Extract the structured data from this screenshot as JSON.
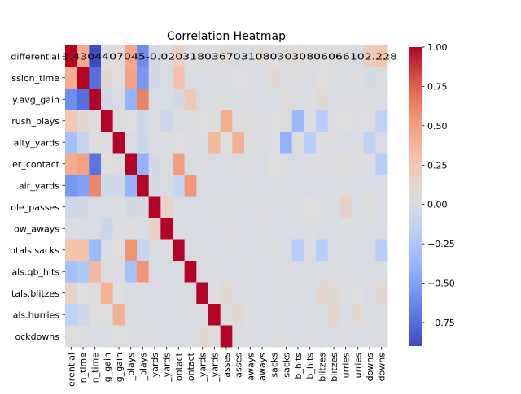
{
  "chart_data": {
    "type": "heatmap",
    "title": "Correlation Heatmap",
    "row_labels": [
      "differential",
      "ssion_time",
      "y.avg_gain",
      "rush_plays",
      "alty_yards",
      "er_contact",
      ".air_yards",
      "ole_passes",
      "ow_aways",
      "otals.sacks",
      "als.qb_hits",
      "tals.blitzes",
      "als.hurries",
      "ockdowns"
    ],
    "col_labels": [
      "erential",
      "n_time",
      "n_time",
      "g_gain",
      "g_gain",
      "_plays",
      "_plays",
      "_yards",
      "_yards",
      "ontact",
      "ontact",
      "_yards",
      "_yards",
      "asses",
      "asses",
      "aways",
      "aways",
      ".sacks",
      ".sacks",
      "b_hits",
      "b_hits",
      "blitzes",
      "blitzes",
      "urries",
      "urries",
      "downs",
      "downs"
    ],
    "cell_label_text": "1.4304407045-0.02031803670310803030806066102.228",
    "colorbar": {
      "vmin": -0.9,
      "vmax": 1.0,
      "ticks": [
        1.0,
        0.75,
        0.5,
        0.25,
        0.0,
        -0.25,
        -0.5,
        -0.75
      ],
      "tick_labels": [
        "1.00",
        "0.75",
        "0.50",
        "0.25",
        "0.00",
        "−0.25",
        "−0.50",
        "−0.75"
      ]
    },
    "colormap": "coolwarm",
    "values": [
      [
        1.0,
        0.43,
        -0.9,
        0.04,
        0.07,
        0.45,
        -0.6,
        -0.02,
        0.03,
        0.18,
        0.03,
        0.07,
        0.03,
        0.08,
        0.0,
        0.03,
        0.08,
        0.03,
        0.06,
        0.08,
        0.06,
        0.06,
        0.06,
        0.06,
        0.01,
        0.22,
        0.28
      ],
      [
        0.43,
        1.0,
        -0.75,
        0.1,
        0.05,
        0.48,
        -0.55,
        -0.02,
        0.02,
        0.3,
        0.02,
        0.02,
        0.04,
        0.02,
        0.05,
        0.04,
        0.02,
        0.1,
        0.03,
        0.04,
        0.02,
        0.05,
        0.03,
        0.02,
        0.04,
        0.0,
        0.03
      ],
      [
        -0.6,
        -0.75,
        1.0,
        -0.02,
        0.02,
        -0.4,
        0.62,
        0.02,
        0.01,
        -0.02,
        0.25,
        0.02,
        0.03,
        0.04,
        0.02,
        0.03,
        0.02,
        0.01,
        0.06,
        0.03,
        0.03,
        0.1,
        0.02,
        0.03,
        0.04,
        0.03,
        0.02
      ],
      [
        0.25,
        0.1,
        0.06,
        1.0,
        0.03,
        0.05,
        -0.05,
        0.02,
        -0.06,
        0.02,
        0.03,
        0.05,
        0.04,
        0.42,
        0.04,
        0.06,
        0.03,
        0.05,
        0.04,
        -0.35,
        0.03,
        -0.2,
        0.04,
        0.05,
        0.03,
        0.05,
        -0.15
      ],
      [
        -0.3,
        -0.1,
        0.06,
        0.03,
        1.0,
        0.02,
        -0.05,
        0.03,
        0.03,
        0.05,
        0.02,
        0.03,
        0.35,
        0.05,
        0.4,
        0.04,
        0.03,
        0.05,
        -0.4,
        0.04,
        -0.2,
        0.04,
        0.03,
        0.02,
        0.02,
        -0.15,
        0.02
      ],
      [
        0.42,
        0.48,
        -0.72,
        0.05,
        0.03,
        1.0,
        -0.4,
        -0.02,
        0.03,
        0.5,
        0.02,
        0.03,
        0.02,
        0.02,
        0.03,
        0.04,
        0.01,
        0.05,
        0.04,
        0.02,
        0.03,
        0.03,
        0.04,
        0.06,
        0.04,
        0.03,
        -0.2
      ],
      [
        -0.55,
        -0.5,
        0.6,
        -0.05,
        -0.05,
        -0.4,
        1.0,
        -0.01,
        0.01,
        -0.1,
        0.55,
        0.01,
        0.02,
        0.02,
        0.02,
        0.03,
        0.01,
        0.02,
        0.03,
        0.02,
        0.02,
        0.02,
        0.02,
        0.03,
        0.02,
        0.02,
        0.02
      ],
      [
        -0.05,
        -0.02,
        0.02,
        0.02,
        0.03,
        -0.02,
        -0.01,
        1.0,
        0.15,
        0.02,
        0.02,
        0.02,
        0.04,
        0.02,
        0.03,
        0.02,
        0.04,
        0.03,
        0.02,
        0.03,
        0.05,
        0.04,
        0.03,
        0.15,
        0.02,
        0.06,
        0.02
      ],
      [
        0.03,
        0.02,
        0.01,
        -0.06,
        0.03,
        0.03,
        0.01,
        0.15,
        1.0,
        0.03,
        0.02,
        0.02,
        0.02,
        0.04,
        0.03,
        0.02,
        0.03,
        0.02,
        0.02,
        0.02,
        0.03,
        0.02,
        0.02,
        0.03,
        0.03,
        0.02,
        0.02
      ],
      [
        0.3,
        0.3,
        -0.35,
        0.02,
        0.05,
        0.55,
        -0.1,
        0.02,
        0.03,
        1.0,
        0.02,
        0.03,
        0.02,
        0.02,
        0.03,
        0.02,
        0.02,
        0.04,
        0.02,
        -0.2,
        0.03,
        -0.2,
        0.02,
        0.03,
        0.02,
        0.02,
        -0.2
      ],
      [
        -0.3,
        -0.25,
        0.35,
        0.03,
        0.02,
        -0.3,
        0.55,
        0.02,
        0.02,
        0.02,
        1.0,
        0.02,
        0.03,
        0.02,
        0.02,
        0.03,
        0.02,
        0.02,
        0.03,
        0.02,
        0.02,
        0.02,
        0.03,
        0.02,
        0.02,
        0.02,
        0.02
      ],
      [
        0.15,
        0.05,
        0.06,
        0.4,
        0.05,
        0.01,
        0.03,
        0.02,
        0.02,
        0.03,
        0.02,
        1.0,
        0.03,
        0.1,
        0.02,
        0.03,
        0.02,
        0.03,
        0.02,
        0.03,
        0.02,
        0.12,
        0.1,
        0.03,
        0.05,
        0.02,
        0.1
      ],
      [
        -0.15,
        -0.05,
        0.05,
        0.05,
        0.4,
        0.02,
        0.03,
        0.02,
        0.02,
        0.02,
        0.03,
        0.03,
        1.0,
        0.04,
        0.1,
        0.03,
        0.02,
        0.03,
        0.02,
        0.02,
        0.03,
        0.02,
        0.12,
        0.02,
        0.1,
        0.02,
        0.03
      ],
      [
        0.05,
        0.03,
        0.02,
        0.01,
        0.05,
        0.03,
        0.02,
        0.04,
        0.02,
        0.02,
        0.02,
        0.1,
        0.04,
        1.0,
        0.02,
        0.03,
        0.02,
        0.03,
        0.04,
        0.02,
        0.03,
        0.02,
        0.02,
        0.03,
        0.02,
        0.03,
        0.02
      ]
    ]
  }
}
